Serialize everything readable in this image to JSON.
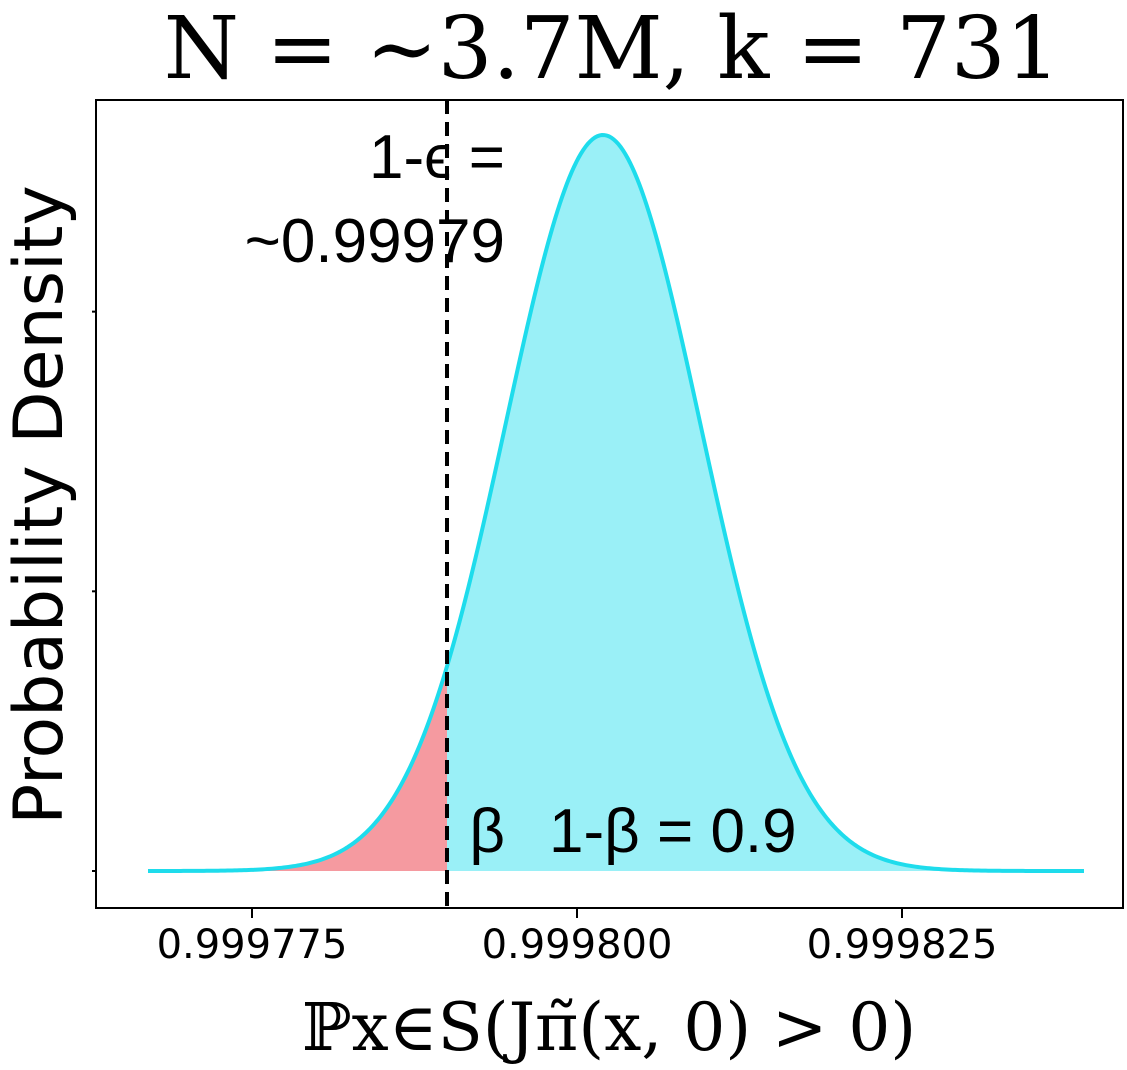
{
  "chart_data": {
    "type": "area",
    "title": "N = ~3.7M, k = 731",
    "xlabel": "ℙx∈S(Jπ̃(x, 0) > 0)",
    "ylabel": "Probability Density",
    "xlim": [
      0.999763,
      0.999842
    ],
    "x_ticks": [
      0.999775,
      0.9998,
      0.999825
    ],
    "x_tick_labels": [
      "0.999775",
      "0.999800",
      "0.999825"
    ],
    "y_ticks_shown": false,
    "grid": false,
    "legend": "none",
    "distribution": {
      "family": "normal",
      "mean": 0.999802,
      "std": 7.5e-06,
      "x_min": 0.999767,
      "x_max": 0.999839
    },
    "threshold": {
      "value": 0.99979,
      "label_line1": "1-ϵ =",
      "label_line2": "~0.99979",
      "line_color": "#000000",
      "line_style": "dashed"
    },
    "regions": [
      {
        "label": "β",
        "side": "left",
        "color": "#f59aa0"
      },
      {
        "label": "1-β = 0.9",
        "side": "right",
        "color": "#9af0f7"
      }
    ],
    "curve_color": "#1edcec"
  }
}
